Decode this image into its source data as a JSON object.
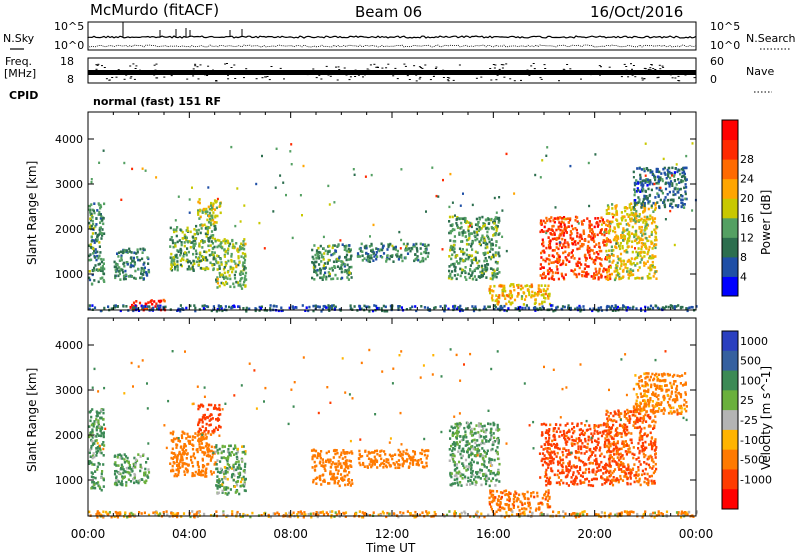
{
  "header": {
    "station": "McMurdo (fitACF)",
    "beam": "Beam 06",
    "date": "16/Oct/2016"
  },
  "left_labels": {
    "nsky": "N.Sky",
    "freq_line1": "Freq.",
    "freq_line2": "[MHz]",
    "cpid": "CPID"
  },
  "right_labels": {
    "nsearch": "N.Search",
    "nave": "Nave"
  },
  "noise_panel": {
    "ticks_left": [
      "10^5",
      "10^0"
    ],
    "ticks_right": [
      "10^5",
      "10^0"
    ]
  },
  "freq_panel": {
    "ticks_left": [
      "18",
      "8"
    ],
    "ticks_right": [
      "60",
      "0"
    ]
  },
  "cpid_text": "normal (fast) 151 RF",
  "x_axis": {
    "ticks": [
      "00:00",
      "04:00",
      "08:00",
      "12:00",
      "16:00",
      "20:00",
      "00:00"
    ],
    "label": "Time UT"
  },
  "y_ticks": [
    "1000",
    "2000",
    "3000",
    "4000"
  ],
  "colors": {
    "power": [
      "#0000ff",
      "#1f4fa6",
      "#2c6e4e",
      "#54a062",
      "#c8c800",
      "#ffa500",
      "#ff6a00",
      "#ff2a00",
      "#ff0000"
    ],
    "velocity": [
      "#2a3fbf",
      "#35609f",
      "#3c8a55",
      "#6bb03c",
      "#b4b4b4",
      "#ffb400",
      "#ff7a00",
      "#ff3c00",
      "#ff0000"
    ]
  },
  "chart_data": [
    {
      "type": "heatmap",
      "title": "",
      "xlabel": "",
      "ylabel": "Slant Range [km]",
      "xlim": [
        0,
        24
      ],
      "ylim": [
        200,
        4600
      ],
      "colorbar": {
        "label": "Power [dB]",
        "ticks": [
          "4",
          "8",
          "12",
          "16",
          "20",
          "24",
          "28"
        ],
        "range": [
          0,
          30
        ]
      },
      "regions": [
        {
          "t0": 0.0,
          "t1": 0.6,
          "r0": 800,
          "r1": 2600,
          "val": 10
        },
        {
          "t0": 1.0,
          "t1": 2.4,
          "r0": 900,
          "r1": 1600,
          "val": 9
        },
        {
          "t0": 1.6,
          "t1": 3.0,
          "r0": 200,
          "r1": 450,
          "val": 26
        },
        {
          "t0": 3.2,
          "t1": 5.0,
          "r0": 1100,
          "r1": 2100,
          "val": 11
        },
        {
          "t0": 4.3,
          "t1": 5.2,
          "r0": 2100,
          "r1": 2700,
          "val": 14
        },
        {
          "t0": 5.0,
          "t1": 6.2,
          "r0": 700,
          "r1": 1800,
          "val": 13
        },
        {
          "t0": 8.8,
          "t1": 10.4,
          "r0": 900,
          "r1": 1700,
          "val": 10
        },
        {
          "t0": 10.6,
          "t1": 13.4,
          "r0": 1300,
          "r1": 1700,
          "val": 9
        },
        {
          "t0": 14.2,
          "t1": 16.2,
          "r0": 900,
          "r1": 2300,
          "val": 11
        },
        {
          "t0": 15.8,
          "t1": 18.2,
          "r0": 350,
          "r1": 800,
          "val": 17
        },
        {
          "t0": 17.8,
          "t1": 20.6,
          "r0": 900,
          "r1": 2300,
          "val": 24
        },
        {
          "t0": 20.4,
          "t1": 22.4,
          "r0": 900,
          "r1": 2600,
          "val": 16
        },
        {
          "t0": 21.5,
          "t1": 23.6,
          "r0": 2500,
          "r1": 3400,
          "val": 7
        },
        {
          "t0": 0.0,
          "t1": 24.0,
          "r0": 200,
          "r1": 330,
          "val": 6
        }
      ]
    },
    {
      "type": "heatmap",
      "title": "",
      "xlabel": "Time UT",
      "ylabel": "Slant Range [km]",
      "xlim": [
        0,
        24
      ],
      "ylim": [
        200,
        4600
      ],
      "colorbar": {
        "label": "Velocity [m s^-1]",
        "ticks": [
          "1000",
          "500",
          "100",
          "25",
          "-25",
          "-100",
          "-500",
          "-1000"
        ],
        "range": [
          -1000,
          1000
        ]
      },
      "regions": [
        {
          "t0": 0.0,
          "t1": 0.6,
          "r0": 800,
          "r1": 2600,
          "val": 150
        },
        {
          "t0": 1.0,
          "t1": 2.4,
          "r0": 900,
          "r1": 1600,
          "val": 120
        },
        {
          "t0": 3.2,
          "t1": 5.0,
          "r0": 1100,
          "r1": 2100,
          "val": -300
        },
        {
          "t0": 4.3,
          "t1": 5.2,
          "r0": 2100,
          "r1": 2700,
          "val": -800
        },
        {
          "t0": 5.0,
          "t1": 6.2,
          "r0": 700,
          "r1": 1800,
          "val": 100
        },
        {
          "t0": 8.8,
          "t1": 10.4,
          "r0": 900,
          "r1": 1700,
          "val": -300
        },
        {
          "t0": 10.6,
          "t1": 13.4,
          "r0": 1300,
          "r1": 1700,
          "val": -250
        },
        {
          "t0": 14.2,
          "t1": 16.2,
          "r0": 900,
          "r1": 2300,
          "val": 120
        },
        {
          "t0": 15.8,
          "t1": 18.2,
          "r0": 350,
          "r1": 800,
          "val": -400
        },
        {
          "t0": 17.8,
          "t1": 20.6,
          "r0": 900,
          "r1": 2300,
          "val": -600
        },
        {
          "t0": 20.4,
          "t1": 22.4,
          "r0": 900,
          "r1": 2600,
          "val": -500
        },
        {
          "t0": 21.5,
          "t1": 23.6,
          "r0": 2500,
          "r1": 3400,
          "val": -200
        },
        {
          "t0": 0.0,
          "t1": 24.0,
          "r0": 200,
          "r1": 330,
          "val": -100
        }
      ]
    }
  ]
}
